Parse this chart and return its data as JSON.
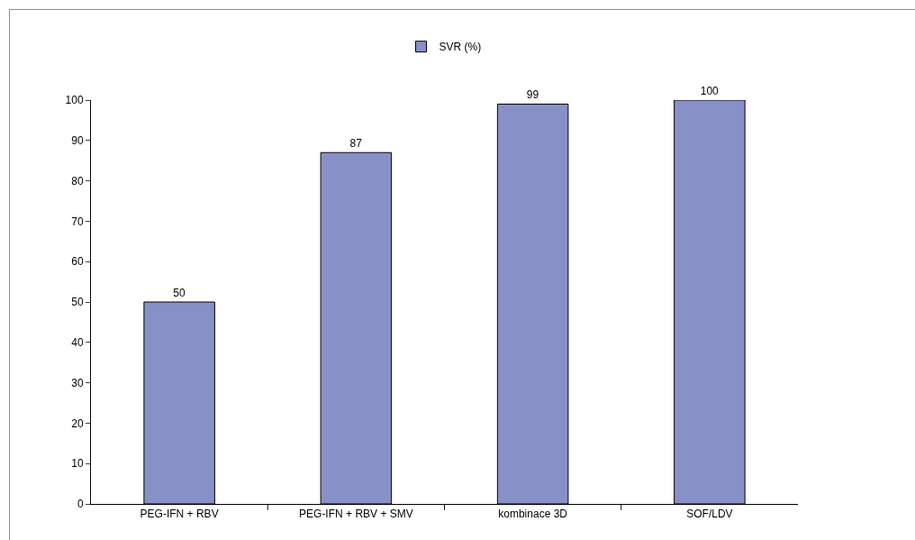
{
  "chart_data": {
    "type": "bar",
    "categories": [
      "PEG-IFN + RBV",
      "PEG-IFN + RBV + SMV",
      "kombinace 3D",
      "SOF/LDV"
    ],
    "series": [
      {
        "name": "SVR (%)",
        "color": "#8890c8",
        "values": [
          50,
          87,
          99,
          100
        ]
      }
    ],
    "ylim": [
      0,
      100
    ],
    "yticks": [
      0,
      10,
      20,
      30,
      40,
      50,
      60,
      70,
      80,
      90,
      100
    ],
    "grid": false,
    "legend": "top",
    "data_labels": true
  }
}
